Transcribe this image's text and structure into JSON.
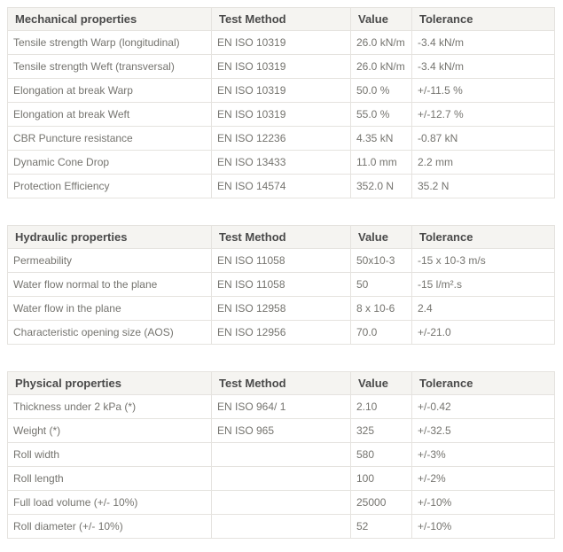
{
  "style": {
    "header_bg": "#f5f4f1",
    "border_color": "#e5e3df",
    "header_text_color": "#4a4a4a",
    "body_text_color": "#75746f"
  },
  "tables": [
    {
      "name": "mechanical-properties",
      "headers": [
        "Mechanical properties",
        "Test Method",
        "Value",
        "Tolerance"
      ],
      "rows": [
        [
          "Tensile strength Warp (longitudinal)",
          "EN ISO 10319",
          "26.0 kN/m",
          "-3.4 kN/m"
        ],
        [
          "Tensile strength Weft (transversal)",
          "EN ISO 10319",
          "26.0 kN/m",
          "-3.4 kN/m"
        ],
        [
          "Elongation at break Warp",
          "EN ISO 10319",
          "50.0 %",
          "+/-11.5 %"
        ],
        [
          "Elongation at break Weft",
          "EN ISO 10319",
          "55.0 %",
          "+/-12.7 %"
        ],
        [
          "CBR Puncture resistance",
          "EN ISO 12236",
          "4.35 kN",
          "-0.87 kN"
        ],
        [
          "Dynamic Cone Drop",
          "EN ISO 13433",
          "11.0 mm",
          "2.2 mm"
        ],
        [
          "Protection Efficiency",
          "EN ISO 14574",
          "352.0 N",
          "35.2 N"
        ]
      ]
    },
    {
      "name": "hydraulic-properties",
      "headers": [
        "Hydraulic properties",
        "Test Method",
        "Value",
        "Tolerance"
      ],
      "rows": [
        [
          "Permeability",
          "EN ISO 11058",
          "50x10-3",
          "-15 x 10-3 m/s"
        ],
        [
          "Water flow normal to the plane",
          "EN ISO 11058",
          "50",
          "-15 l/m².s"
        ],
        [
          "Water flow in the plane",
          "EN ISO 12958",
          "8 x 10-6",
          "2.4"
        ],
        [
          "Characteristic opening size (AOS)",
          "EN ISO 12956",
          "70.0",
          "+/-21.0"
        ]
      ]
    },
    {
      "name": "physical-properties",
      "headers": [
        "Physical properties",
        "Test Method",
        "Value",
        "Tolerance"
      ],
      "rows": [
        [
          "Thickness under 2 kPa (*)",
          "EN ISO 964/ 1",
          "2.10",
          "+/-0.42"
        ],
        [
          "Weight (*)",
          "EN ISO 965",
          "325",
          "+/-32.5"
        ],
        [
          "Roll width",
          "",
          "580",
          "+/-3%"
        ],
        [
          "Roll length",
          "",
          "100",
          "+/-2%"
        ],
        [
          "Full load volume (+/- 10%)",
          "",
          "25000",
          "+/-10%"
        ],
        [
          "Roll diameter (+/- 10%)",
          "",
          "52",
          "+/-10%"
        ]
      ]
    }
  ]
}
